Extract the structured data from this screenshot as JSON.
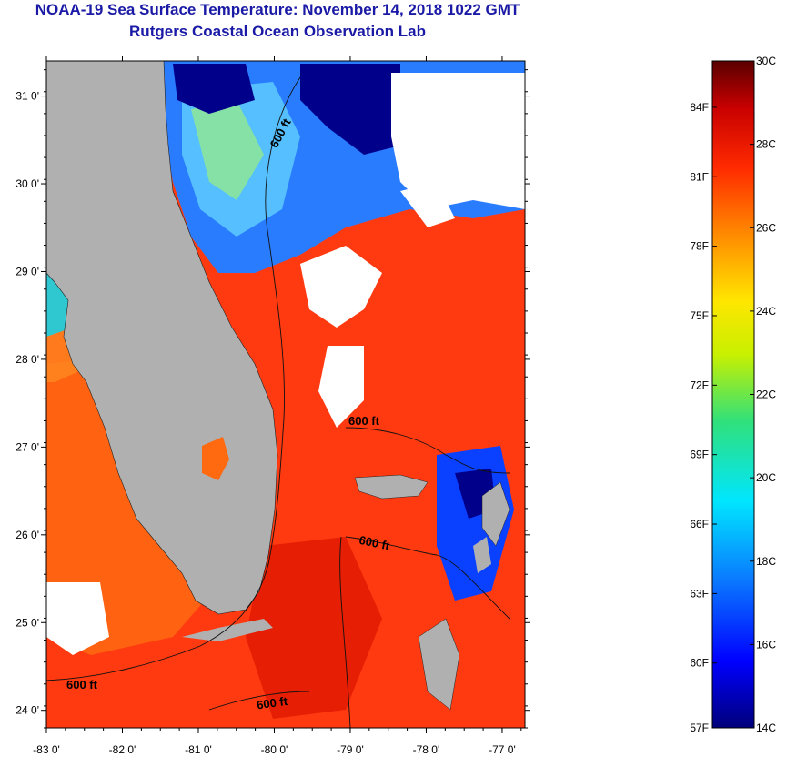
{
  "title": {
    "line1": "NOAA-19 Sea Surface Temperature:  November 14, 2018 1022 GMT",
    "line2": "Rutgers Coastal Ocean Observation Lab"
  },
  "axes": {
    "lon_ticks": [
      "-83 0'",
      "-82 0'",
      "-81 0'",
      "-80 0'",
      "-79 0'",
      "-78 0'",
      "-77 0'"
    ],
    "lat_ticks": [
      "31 0'",
      "30 0'",
      "29 0'",
      "28 0'",
      "27 0'",
      "26 0'",
      "25 0'",
      "24 0'"
    ],
    "lon_range": [
      -83.0,
      -76.7
    ],
    "lat_range": [
      23.8,
      31.4
    ]
  },
  "contours": {
    "label": "600 ft",
    "labels": [
      "600 ft",
      "600 ft",
      "600 ft",
      "600 ft",
      "600 ft"
    ]
  },
  "colorbar": {
    "celsius_labels": [
      "30C",
      "28C",
      "26C",
      "24C",
      "22C",
      "20C",
      "18C",
      "16C",
      "14C"
    ],
    "fahrenheit_labels": [
      "84F",
      "81F",
      "78F",
      "75F",
      "72F",
      "69F",
      "66F",
      "63F",
      "60F",
      "57F"
    ],
    "range_c": [
      14,
      30
    ],
    "colors": [
      "#00007a",
      "#0000ff",
      "#0a78ff",
      "#00e6ff",
      "#30e07a",
      "#c8f000",
      "#ffe600",
      "#ff8a00",
      "#ff2a00",
      "#c80000",
      "#5a0000"
    ]
  },
  "colors": {
    "land": "#b0b0b0",
    "cloud": "#ffffff",
    "warm_water": "#ff3a10",
    "title": "#1a1aa6"
  }
}
